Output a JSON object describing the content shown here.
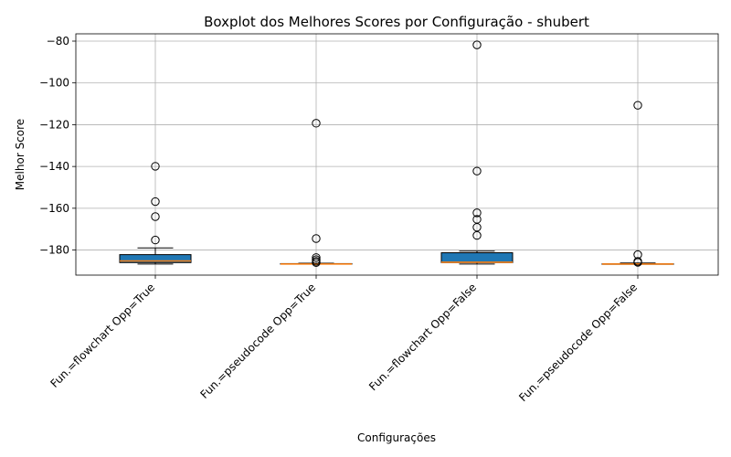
{
  "chart_data": {
    "type": "box",
    "title": "Boxplot dos Melhores Scores por Configuração - shubert",
    "xlabel": "Configurações",
    "ylabel": "Melhor Score",
    "ylim": [
      -192.0,
      -76.5
    ],
    "yticks": [
      -80,
      -100,
      -120,
      -140,
      -160,
      -180
    ],
    "ytick_labels": [
      "−80",
      "−100",
      "−120",
      "−140",
      "−160",
      "−180"
    ],
    "grid": true,
    "categories": [
      "Fun.=flowchart Opp=True",
      "Fun.=pseudocode Opp=True",
      "Fun.=flowchart Opp=False",
      "Fun.=pseudocode Opp=False"
    ],
    "boxes": [
      {
        "whislo": -186.7,
        "q1": -186.0,
        "med": -185.2,
        "q3": -182.2,
        "whishi": -179.0,
        "fliers": [
          -175.2,
          -164.0,
          -156.8,
          -139.9
        ]
      },
      {
        "whislo": -186.7,
        "q1": -186.7,
        "med": -186.7,
        "q3": -186.5,
        "whishi": -186.3,
        "fliers": [
          -186.0,
          -185.4,
          -184.6,
          -183.6,
          -174.5,
          -119.3
        ]
      },
      {
        "whislo": -186.7,
        "q1": -186.0,
        "med": -185.8,
        "q3": -181.3,
        "whishi": -180.5,
        "fliers": [
          -173.0,
          -169.1,
          -165.3,
          -162.2,
          -142.2,
          -81.8
        ]
      },
      {
        "whislo": -186.7,
        "q1": -186.7,
        "med": -186.7,
        "q3": -186.6,
        "whishi": -186.2,
        "fliers": [
          -185.9,
          -185.4,
          -182.2,
          -110.7
        ]
      }
    ],
    "box_color": "#1f77b4",
    "median_color": "#ff7f0e",
    "grid_color": "#b0b0b0"
  }
}
